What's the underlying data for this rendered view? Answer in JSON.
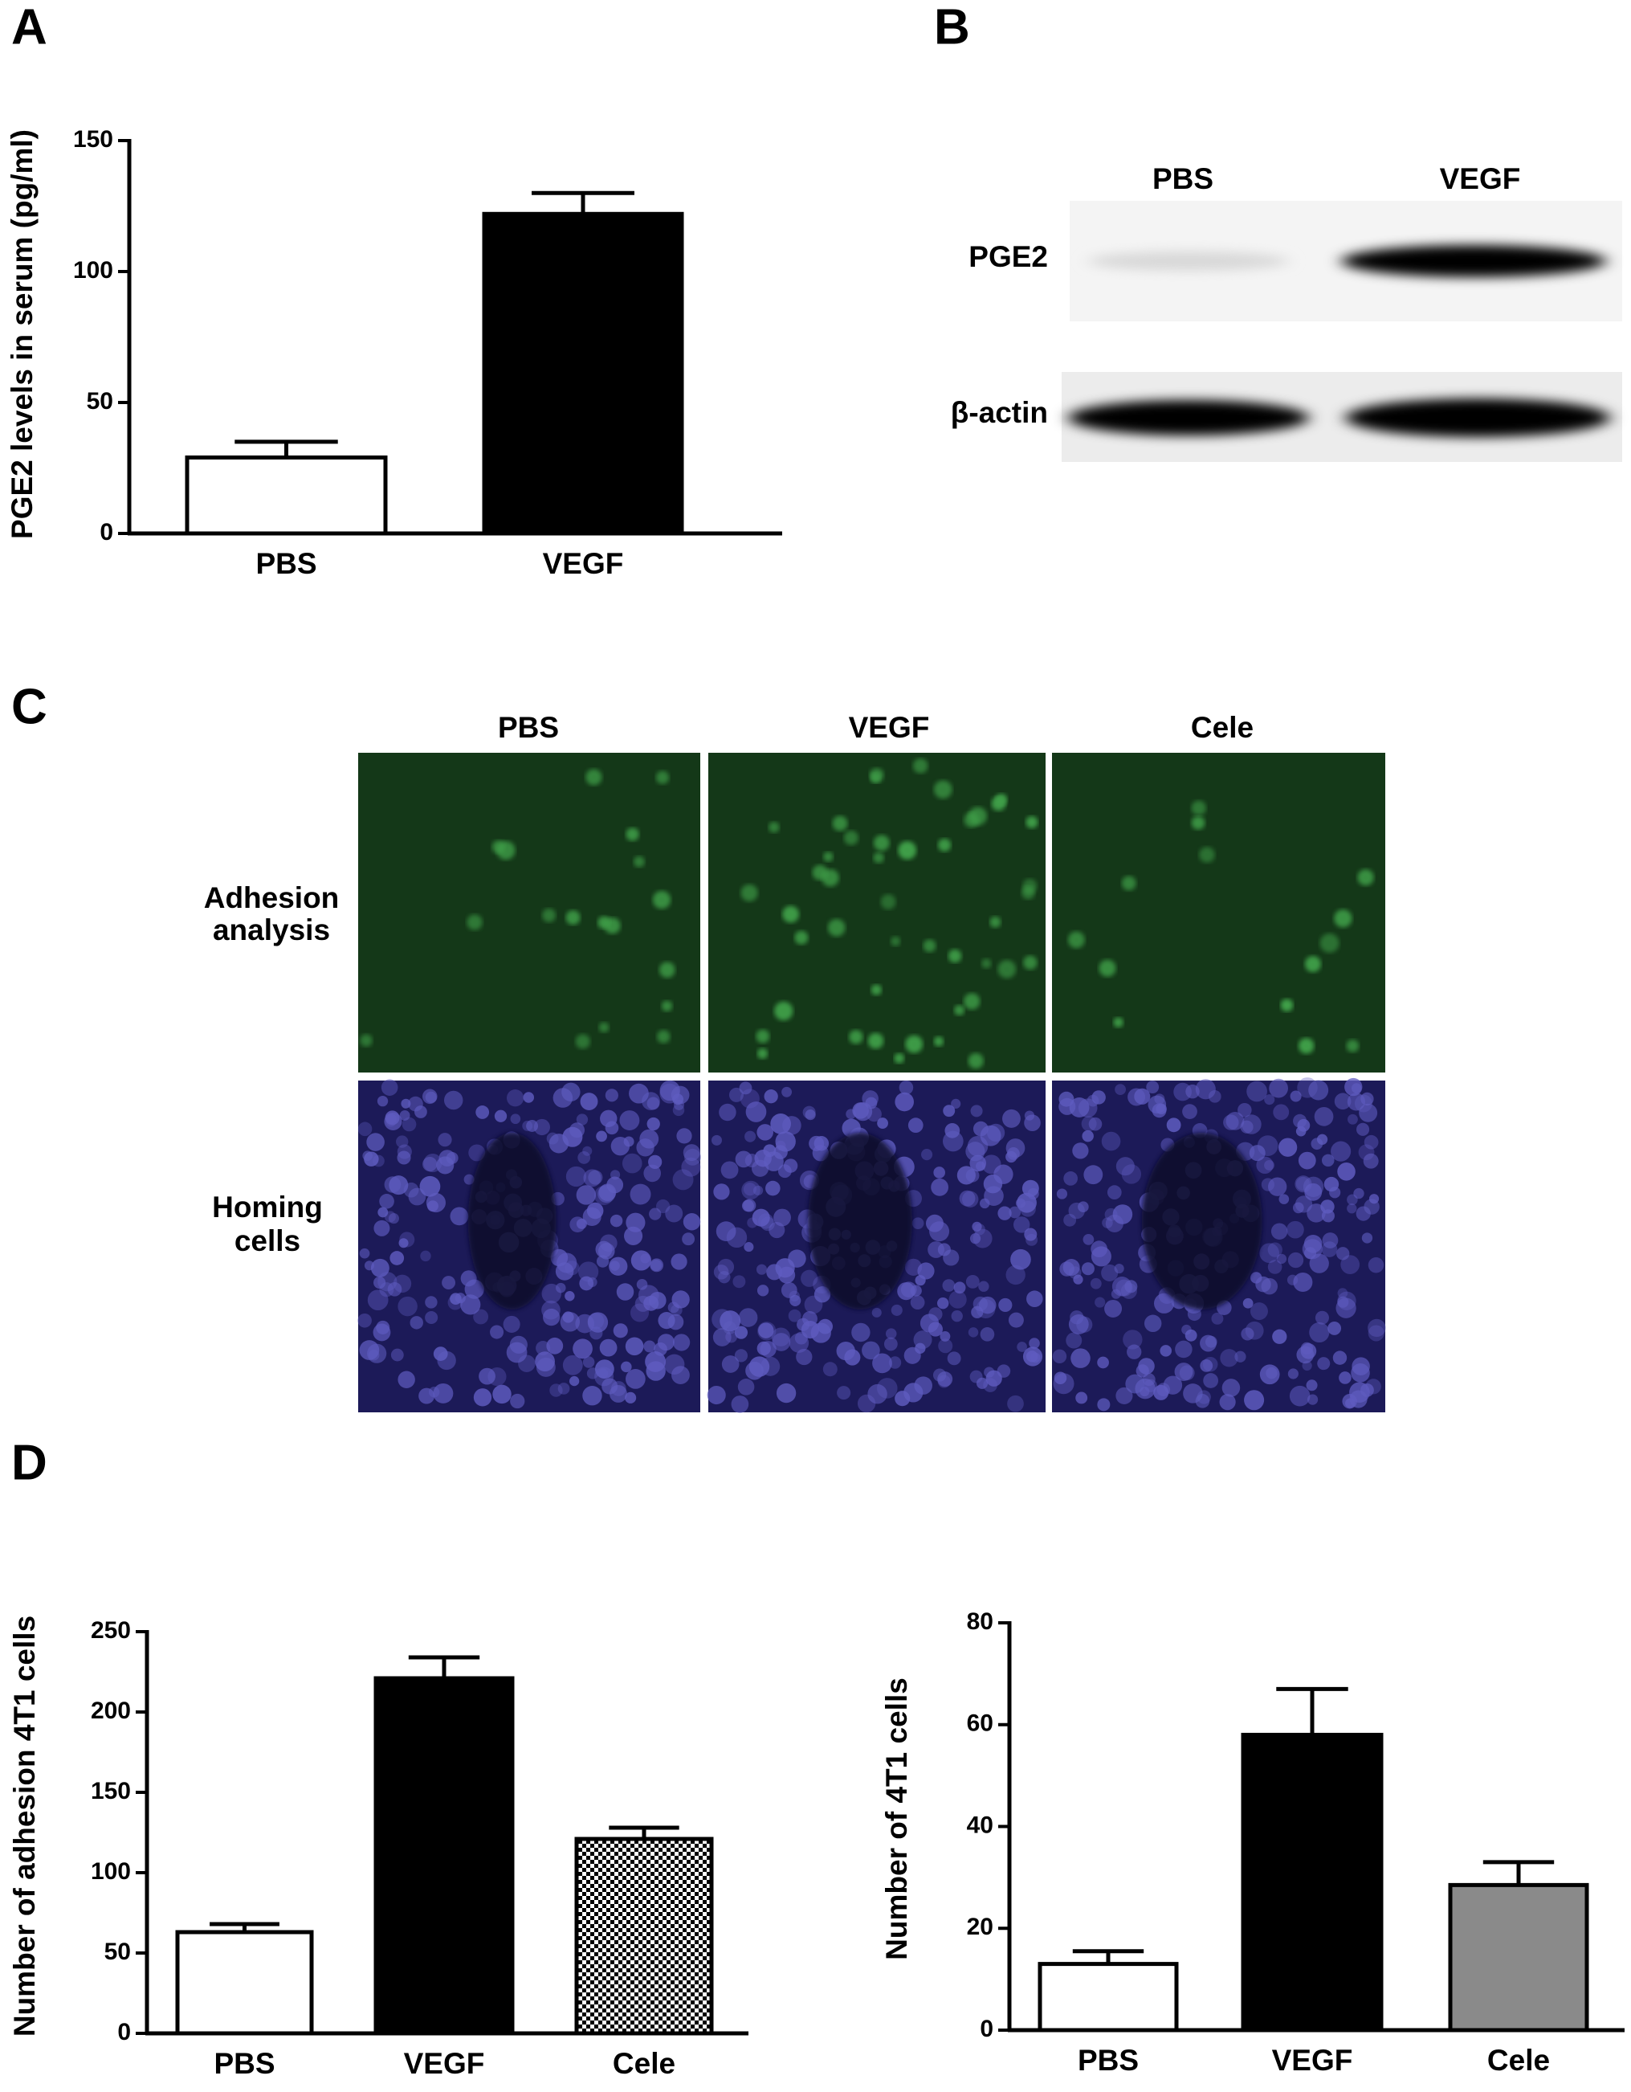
{
  "panels": {
    "a": "A",
    "b": "B",
    "c": "C",
    "d": "D"
  },
  "blot": {
    "lanes": [
      "PBS",
      "VEGF"
    ],
    "rows": [
      "PGE2",
      "β-actin"
    ]
  },
  "micrographs": {
    "columns": [
      "PBS",
      "VEGF",
      "Cele"
    ],
    "rows": [
      [
        "Adhesion",
        "analysis"
      ],
      [
        "Homing",
        "cells"
      ]
    ]
  },
  "chart_data": [
    {
      "type": "bar",
      "ylabel": "PGE2 levels in serum (pg/ml)",
      "categories": [
        "PBS",
        "VEGF"
      ],
      "values": [
        29,
        122
      ],
      "errors": [
        6,
        8
      ],
      "colors": [
        "#ffffff",
        "#000000"
      ],
      "ylim": [
        0,
        150
      ],
      "yticks": [
        0,
        50,
        100,
        150
      ]
    },
    {
      "type": "bar",
      "ylabel": "Number of adhesion 4T1 cells",
      "categories": [
        "PBS",
        "VEGF",
        "Cele"
      ],
      "values": [
        63,
        221,
        121
      ],
      "errors": [
        5,
        13,
        7
      ],
      "colors": [
        "#ffffff",
        "#000000",
        "checker"
      ],
      "ylim": [
        0,
        250
      ],
      "yticks": [
        0,
        50,
        100,
        150,
        200,
        250
      ]
    },
    {
      "type": "bar",
      "ylabel": "Number of 4T1 cells",
      "categories": [
        "PBS",
        "VEGF",
        "Cele"
      ],
      "values": [
        13,
        58,
        28.5
      ],
      "errors": [
        2.5,
        9,
        4.5
      ],
      "colors": [
        "#ffffff",
        "#000000",
        "#8a8a8a"
      ],
      "ylim": [
        0,
        80
      ],
      "yticks": [
        0,
        20,
        40,
        60,
        80
      ]
    }
  ]
}
